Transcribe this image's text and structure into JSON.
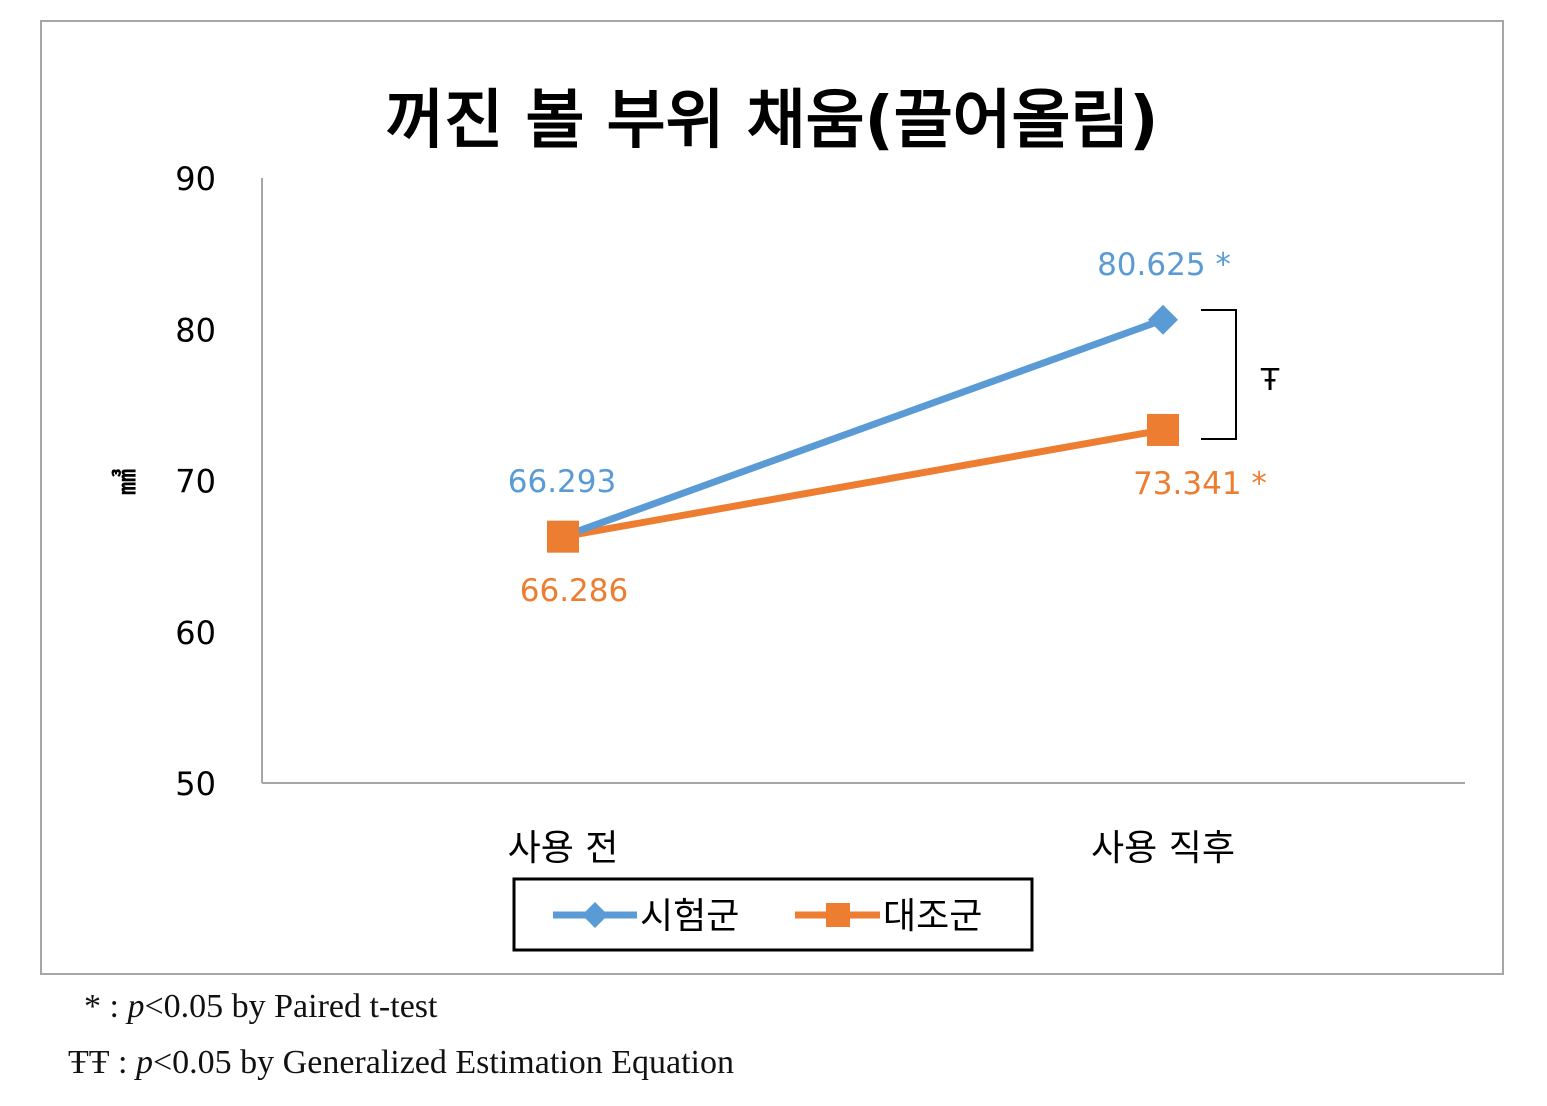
{
  "chart_data": {
    "type": "line",
    "title": "꺼진 볼 부위 채움(끌어올림)",
    "ylabel": "㎣",
    "xlabel": "",
    "categories": [
      "사용 전",
      "사용 직후"
    ],
    "ylim": [
      50,
      90
    ],
    "yticks": [
      "50",
      "60",
      "70",
      "80",
      "90"
    ],
    "grid": false,
    "legend_position": "bottom",
    "series": [
      {
        "name": "시험군",
        "color": "#5B9BD5",
        "marker": "diamond",
        "values": [
          66.293,
          80.625
        ],
        "labels": [
          "66.293",
          "80.625 *"
        ]
      },
      {
        "name": "대조군",
        "color": "#ED7D31",
        "marker": "square",
        "values": [
          66.286,
          73.341
        ],
        "labels": [
          "66.286",
          "73.341 *"
        ]
      }
    ],
    "bracket_annotation": "Ŧ"
  },
  "footnotes": {
    "note1": {
      "symbol": "*",
      "sep": ":",
      "p": "p",
      "text": "<0.05 by Paired t-test"
    },
    "note2": {
      "symbol": "ŦŦ",
      "sep": ":",
      "p": "p",
      "text": "<0.05 by Generalized Estimation Equation"
    }
  }
}
